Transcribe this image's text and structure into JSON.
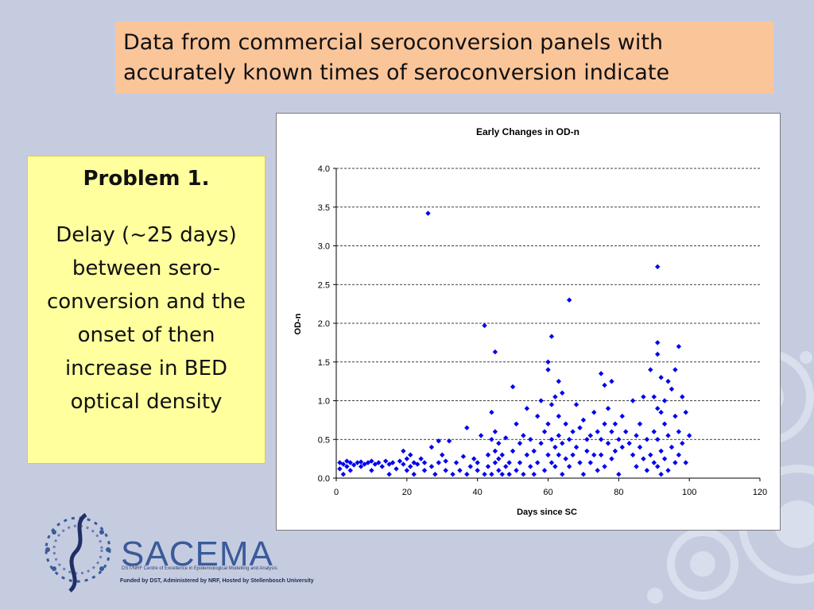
{
  "slide": {
    "title": "Data from commercial seroconversion panels with accurately known times of seroconversion indicate",
    "problem": {
      "heading": "Problem 1.",
      "body": "Delay (~25 days) between sero-conversion and the onset of then increase in BED optical density"
    },
    "logo": {
      "name": "SACEMA",
      "subtitle": "DST/NRF Centre of Excellence in Epidemiological Modelling and Analysis",
      "funding": "Funded by DST, Administered by NRF, Hosted by Stellenbosch University"
    },
    "colors": {
      "background": "#c6cce0",
      "title_box": "#fbc59a",
      "problem_box": "#ffff9e",
      "points": "#0000ee"
    }
  },
  "chart_data": {
    "type": "scatter",
    "title": "Early Changes in OD-n",
    "xlabel": "Days since SC",
    "ylabel": "OD-n",
    "xlim": [
      0,
      120
    ],
    "ylim": [
      0,
      4
    ],
    "xticks": [
      "0",
      "20",
      "40",
      "60",
      "80",
      "100",
      "120"
    ],
    "yticks": [
      "0.0",
      "0.5",
      "1.0",
      "1.5",
      "2.0",
      "2.5",
      "3.0",
      "3.5",
      "4.0"
    ],
    "grid": "horizontal-dashed",
    "legend": "none",
    "points": [
      [
        1,
        0.12
      ],
      [
        1,
        0.2
      ],
      [
        2,
        0.05
      ],
      [
        2,
        0.18
      ],
      [
        3,
        0.15
      ],
      [
        3,
        0.22
      ],
      [
        4,
        0.1
      ],
      [
        4,
        0.2
      ],
      [
        5,
        0.17
      ],
      [
        6,
        0.2
      ],
      [
        7,
        0.15
      ],
      [
        7,
        0.21
      ],
      [
        8,
        0.18
      ],
      [
        9,
        0.2
      ],
      [
        10,
        0.1
      ],
      [
        10,
        0.22
      ],
      [
        11,
        0.18
      ],
      [
        12,
        0.2
      ],
      [
        13,
        0.15
      ],
      [
        14,
        0.22
      ],
      [
        15,
        0.05
      ],
      [
        15,
        0.18
      ],
      [
        16,
        0.2
      ],
      [
        17,
        0.12
      ],
      [
        18,
        0.22
      ],
      [
        19,
        0.18
      ],
      [
        19,
        0.35
      ],
      [
        20,
        0.1
      ],
      [
        20,
        0.25
      ],
      [
        21,
        0.3
      ],
      [
        21,
        0.15
      ],
      [
        22,
        0.2
      ],
      [
        22,
        0.05
      ],
      [
        23,
        0.18
      ],
      [
        24,
        0.25
      ],
      [
        25,
        0.1
      ],
      [
        25,
        0.2
      ],
      [
        26,
        3.42
      ],
      [
        27,
        0.15
      ],
      [
        27,
        0.4
      ],
      [
        28,
        0.05
      ],
      [
        29,
        0.2
      ],
      [
        29,
        0.48
      ],
      [
        30,
        0.3
      ],
      [
        31,
        0.1
      ],
      [
        31,
        0.22
      ],
      [
        32,
        0.48
      ],
      [
        33,
        0.05
      ],
      [
        34,
        0.2
      ],
      [
        35,
        0.1
      ],
      [
        36,
        0.28
      ],
      [
        37,
        0.65
      ],
      [
        37,
        0.05
      ],
      [
        38,
        0.15
      ],
      [
        39,
        0.25
      ],
      [
        40,
        0.1
      ],
      [
        40,
        0.2
      ],
      [
        41,
        0.55
      ],
      [
        42,
        1.97
      ],
      [
        42,
        0.05
      ],
      [
        43,
        0.15
      ],
      [
        43,
        0.3
      ],
      [
        44,
        0.5
      ],
      [
        44,
        0.85
      ],
      [
        44,
        0.05
      ],
      [
        45,
        1.63
      ],
      [
        45,
        0.2
      ],
      [
        45,
        0.6
      ],
      [
        45,
        0.35
      ],
      [
        46,
        0.1
      ],
      [
        46,
        0.45
      ],
      [
        46,
        0.25
      ],
      [
        47,
        0.05
      ],
      [
        47,
        0.3
      ],
      [
        48,
        0.15
      ],
      [
        48,
        0.52
      ],
      [
        49,
        0.2
      ],
      [
        49,
        0.05
      ],
      [
        50,
        1.18
      ],
      [
        50,
        0.35
      ],
      [
        51,
        0.1
      ],
      [
        51,
        0.7
      ],
      [
        52,
        0.2
      ],
      [
        52,
        0.45
      ],
      [
        53,
        0.55
      ],
      [
        53,
        0.05
      ],
      [
        54,
        0.3
      ],
      [
        54,
        0.9
      ],
      [
        55,
        0.15
      ],
      [
        55,
        0.5
      ],
      [
        56,
        0.35
      ],
      [
        56,
        0.05
      ],
      [
        57,
        0.8
      ],
      [
        57,
        0.2
      ],
      [
        58,
        0.45
      ],
      [
        58,
        1.0
      ],
      [
        59,
        0.1
      ],
      [
        59,
        0.6
      ],
      [
        60,
        1.5
      ],
      [
        60,
        1.4
      ],
      [
        60,
        0.7
      ],
      [
        60,
        0.3
      ],
      [
        61,
        1.83
      ],
      [
        61,
        0.5
      ],
      [
        61,
        0.2
      ],
      [
        61,
        0.95
      ],
      [
        62,
        0.4
      ],
      [
        62,
        1.05
      ],
      [
        62,
        0.15
      ],
      [
        63,
        1.25
      ],
      [
        63,
        0.55
      ],
      [
        63,
        0.8
      ],
      [
        63,
        0.3
      ],
      [
        64,
        1.1
      ],
      [
        64,
        0.45
      ],
      [
        64,
        0.05
      ],
      [
        65,
        0.7
      ],
      [
        65,
        0.25
      ],
      [
        66,
        2.3
      ],
      [
        66,
        0.5
      ],
      [
        66,
        0.15
      ],
      [
        67,
        0.6
      ],
      [
        67,
        0.3
      ],
      [
        68,
        0.95
      ],
      [
        68,
        0.4
      ],
      [
        69,
        0.2
      ],
      [
        69,
        0.65
      ],
      [
        70,
        0.75
      ],
      [
        70,
        0.05
      ],
      [
        71,
        0.5
      ],
      [
        71,
        0.35
      ],
      [
        72,
        0.55
      ],
      [
        72,
        0.2
      ],
      [
        73,
        0.3
      ],
      [
        73,
        0.85
      ],
      [
        74,
        0.6
      ],
      [
        74,
        0.1
      ],
      [
        75,
        1.35
      ],
      [
        75,
        0.5
      ],
      [
        75,
        0.3
      ],
      [
        76,
        1.2
      ],
      [
        76,
        0.7
      ],
      [
        76,
        0.15
      ],
      [
        77,
        0.45
      ],
      [
        77,
        0.9
      ],
      [
        78,
        1.25
      ],
      [
        78,
        0.6
      ],
      [
        78,
        0.25
      ],
      [
        79,
        0.7
      ],
      [
        79,
        0.35
      ],
      [
        80,
        0.5
      ],
      [
        80,
        0.05
      ],
      [
        81,
        0.8
      ],
      [
        81,
        0.4
      ],
      [
        82,
        0.6
      ],
      [
        83,
        0.45
      ],
      [
        84,
        1.0
      ],
      [
        84,
        0.3
      ],
      [
        85,
        0.55
      ],
      [
        85,
        0.15
      ],
      [
        86,
        0.4
      ],
      [
        86,
        0.7
      ],
      [
        87,
        1.05
      ],
      [
        87,
        0.25
      ],
      [
        88,
        0.5
      ],
      [
        88,
        0.1
      ],
      [
        89,
        1.4
      ],
      [
        89,
        0.3
      ],
      [
        90,
        1.05
      ],
      [
        90,
        0.2
      ],
      [
        90,
        0.6
      ],
      [
        91,
        2.73
      ],
      [
        91,
        1.75
      ],
      [
        91,
        1.6
      ],
      [
        91,
        0.9
      ],
      [
        91,
        0.5
      ],
      [
        91,
        0.15
      ],
      [
        92,
        1.3
      ],
      [
        92,
        0.85
      ],
      [
        92,
        0.35
      ],
      [
        92,
        0.05
      ],
      [
        93,
        1.0
      ],
      [
        93,
        0.7
      ],
      [
        93,
        0.25
      ],
      [
        94,
        1.25
      ],
      [
        94,
        0.55
      ],
      [
        94,
        0.1
      ],
      [
        95,
        1.15
      ],
      [
        95,
        0.4
      ],
      [
        96,
        1.4
      ],
      [
        96,
        0.8
      ],
      [
        96,
        0.2
      ],
      [
        97,
        1.7
      ],
      [
        97,
        0.6
      ],
      [
        97,
        0.3
      ],
      [
        98,
        1.05
      ],
      [
        98,
        0.45
      ],
      [
        99,
        0.85
      ],
      [
        99,
        0.2
      ],
      [
        100,
        0.55
      ]
    ]
  }
}
